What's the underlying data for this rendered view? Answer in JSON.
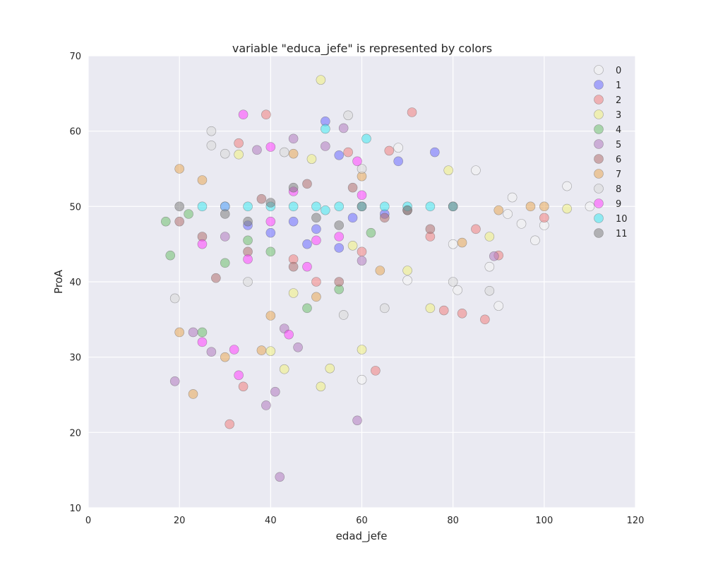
{
  "chart_data": {
    "type": "scatter",
    "title": "variable \"educa_jefe\" is represented by colors",
    "xlabel": "edad_jefe",
    "ylabel": "ProA",
    "xlim": [
      0,
      120
    ],
    "ylim": [
      10,
      70
    ],
    "xticks": [
      "0",
      "20",
      "40",
      "60",
      "80",
      "100",
      "120"
    ],
    "yticks": [
      "10",
      "20",
      "30",
      "40",
      "50",
      "60",
      "70"
    ],
    "grid": true,
    "legend_position": "top-right",
    "series": [
      {
        "name": "0",
        "color": "#f2f2f2",
        "points": [
          [
            85,
            54.8
          ],
          [
            88,
            42.0
          ],
          [
            90,
            36.8
          ],
          [
            81,
            38.9
          ],
          [
            95,
            47.7
          ],
          [
            98,
            45.5
          ],
          [
            105,
            52.7
          ],
          [
            110,
            50.0
          ],
          [
            92,
            49.0
          ],
          [
            60,
            27.0
          ],
          [
            68,
            57.8
          ],
          [
            80,
            45.0
          ],
          [
            70,
            40.2
          ],
          [
            93,
            51.2
          ],
          [
            100,
            47.5
          ]
        ]
      },
      {
        "name": "1",
        "color": "#6a6aff",
        "points": [
          [
            52,
            61.3
          ],
          [
            55,
            56.8
          ],
          [
            68,
            56.0
          ],
          [
            76,
            57.2
          ],
          [
            45,
            48.0
          ],
          [
            50,
            47.0
          ],
          [
            58,
            48.5
          ],
          [
            40,
            46.5
          ],
          [
            35,
            47.5
          ],
          [
            65,
            49.0
          ],
          [
            55,
            44.5
          ],
          [
            48,
            45.0
          ]
        ]
      },
      {
        "name": "2",
        "color": "#f08080",
        "points": [
          [
            39,
            62.2
          ],
          [
            71,
            62.5
          ],
          [
            31,
            21.1
          ],
          [
            34,
            26.1
          ],
          [
            63,
            28.2
          ],
          [
            87,
            35.0
          ],
          [
            78,
            36.2
          ],
          [
            82,
            35.8
          ],
          [
            57,
            57.2
          ],
          [
            66,
            57.4
          ],
          [
            33,
            58.4
          ],
          [
            45,
            43.0
          ],
          [
            50,
            40.0
          ],
          [
            60,
            44.0
          ],
          [
            75,
            46.0
          ],
          [
            90,
            43.5
          ],
          [
            100,
            48.5
          ],
          [
            85,
            47.0
          ]
        ]
      },
      {
        "name": "3",
        "color": "#f0f080",
        "points": [
          [
            51,
            66.8
          ],
          [
            53,
            28.5
          ],
          [
            43,
            28.4
          ],
          [
            51,
            26.1
          ],
          [
            60,
            31.0
          ],
          [
            75,
            36.5
          ],
          [
            105,
            49.7
          ],
          [
            79,
            54.8
          ],
          [
            49,
            56.3
          ],
          [
            33,
            56.9
          ],
          [
            40,
            30.8
          ],
          [
            58,
            44.8
          ],
          [
            70,
            41.5
          ],
          [
            88,
            46.0
          ],
          [
            45,
            38.5
          ]
        ]
      },
      {
        "name": "4",
        "color": "#6fbf6f",
        "points": [
          [
            25,
            33.3
          ],
          [
            17,
            48.0
          ],
          [
            22,
            49.0
          ],
          [
            30,
            42.5
          ],
          [
            48,
            36.5
          ],
          [
            55,
            39.0
          ],
          [
            62,
            46.5
          ],
          [
            40,
            44.0
          ],
          [
            18,
            43.5
          ],
          [
            35,
            45.5
          ]
        ]
      },
      {
        "name": "5",
        "color": "#b07ac0",
        "points": [
          [
            42,
            14.1
          ],
          [
            59,
            21.6
          ],
          [
            39,
            23.6
          ],
          [
            41,
            25.4
          ],
          [
            19,
            26.8
          ],
          [
            27,
            30.7
          ],
          [
            46,
            31.3
          ],
          [
            56,
            60.4
          ],
          [
            45,
            59.0
          ],
          [
            52,
            58.0
          ],
          [
            23,
            33.3
          ],
          [
            43,
            33.8
          ],
          [
            37,
            57.5
          ],
          [
            89,
            43.4
          ],
          [
            60,
            42.8
          ],
          [
            30,
            46.0
          ]
        ]
      },
      {
        "name": "6",
        "color": "#b07070",
        "points": [
          [
            20,
            48.0
          ],
          [
            25,
            46.0
          ],
          [
            35,
            44.0
          ],
          [
            45,
            42.0
          ],
          [
            55,
            40.0
          ],
          [
            65,
            48.5
          ],
          [
            75,
            47.0
          ],
          [
            48,
            53.0
          ],
          [
            38,
            51.0
          ],
          [
            58,
            52.5
          ],
          [
            70,
            49.5
          ],
          [
            28,
            40.5
          ]
        ]
      },
      {
        "name": "7",
        "color": "#e8a858",
        "points": [
          [
            23,
            25.1
          ],
          [
            30,
            30.0
          ],
          [
            20,
            33.3
          ],
          [
            38,
            30.9
          ],
          [
            40,
            35.5
          ],
          [
            20,
            55.0
          ],
          [
            25,
            53.5
          ],
          [
            45,
            57.0
          ],
          [
            60,
            54.0
          ],
          [
            97,
            50.0
          ],
          [
            100,
            50.0
          ],
          [
            90,
            49.5
          ],
          [
            82,
            45.2
          ],
          [
            64,
            41.5
          ],
          [
            50,
            38.0
          ]
        ]
      },
      {
        "name": "8",
        "color": "#d8d8d8",
        "points": [
          [
            27,
            60.0
          ],
          [
            27,
            58.1
          ],
          [
            57,
            62.1
          ],
          [
            43,
            57.2
          ],
          [
            19,
            37.8
          ],
          [
            56,
            35.6
          ],
          [
            88,
            38.8
          ],
          [
            80,
            40.0
          ],
          [
            65,
            36.5
          ],
          [
            35,
            40.0
          ],
          [
            60,
            55.0
          ],
          [
            30,
            57.0
          ]
        ]
      },
      {
        "name": "9",
        "color": "#ff40ff",
        "points": [
          [
            34,
            62.2
          ],
          [
            33,
            27.6
          ],
          [
            25,
            32.0
          ],
          [
            32,
            31.0
          ],
          [
            44,
            33.0
          ],
          [
            59,
            56.0
          ],
          [
            40,
            57.9
          ],
          [
            45,
            52.0
          ],
          [
            40,
            48.0
          ],
          [
            50,
            45.5
          ],
          [
            30,
            50.0
          ],
          [
            55,
            46.0
          ],
          [
            35,
            43.0
          ],
          [
            60,
            51.5
          ],
          [
            25,
            45.0
          ],
          [
            48,
            42.0
          ]
        ]
      },
      {
        "name": "10",
        "color": "#40e8f0",
        "points": [
          [
            61,
            59.0
          ],
          [
            52,
            60.3
          ],
          [
            25,
            50.0
          ],
          [
            30,
            50.0
          ],
          [
            35,
            50.0
          ],
          [
            40,
            50.0
          ],
          [
            45,
            50.0
          ],
          [
            50,
            50.0
          ],
          [
            55,
            50.0
          ],
          [
            60,
            50.0
          ],
          [
            65,
            50.0
          ],
          [
            70,
            50.0
          ],
          [
            75,
            50.0
          ],
          [
            80,
            50.0
          ],
          [
            52,
            49.5
          ]
        ]
      },
      {
        "name": "11",
        "color": "#808080",
        "points": [
          [
            20,
            50.0
          ],
          [
            30,
            49.0
          ],
          [
            40,
            50.5
          ],
          [
            50,
            48.5
          ],
          [
            60,
            50.0
          ],
          [
            70,
            49.5
          ],
          [
            80,
            50.0
          ],
          [
            45,
            52.5
          ],
          [
            55,
            47.5
          ],
          [
            35,
            48.0
          ]
        ]
      }
    ]
  }
}
